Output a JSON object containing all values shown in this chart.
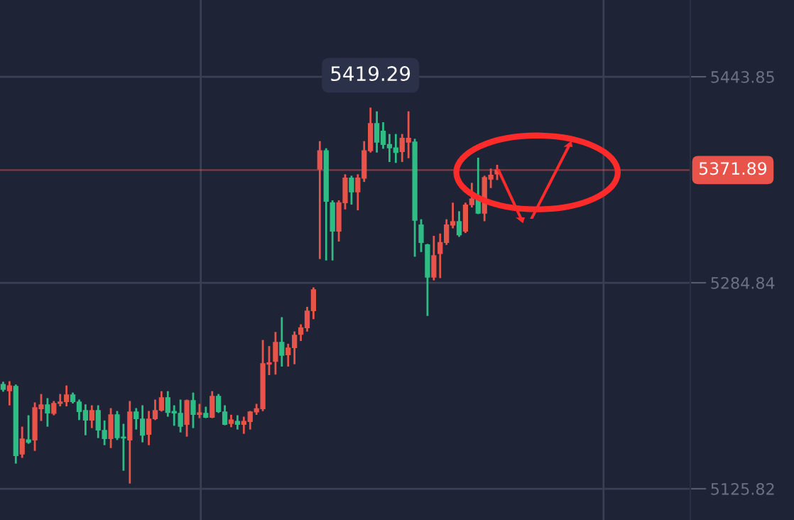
{
  "chart_data": {
    "type": "candlestick",
    "categories": [
      null,
      null,
      null,
      null,
      null,
      null,
      null,
      null,
      null,
      null,
      null,
      null,
      null,
      null,
      null,
      null,
      null,
      null,
      null,
      null,
      null,
      null,
      null,
      null,
      null,
      null,
      null,
      null,
      null,
      null,
      null,
      null,
      null,
      null,
      null,
      null,
      null,
      null,
      null,
      null,
      null,
      null,
      null,
      null,
      null,
      null,
      null,
      null,
      null,
      null,
      null,
      null,
      null,
      null,
      null,
      null,
      null,
      null,
      null,
      null,
      null,
      null,
      null,
      null,
      null,
      null,
      null,
      null,
      null,
      null,
      null,
      null,
      null,
      null,
      null,
      null,
      null,
      null,
      null,
      null,
      null,
      null,
      null,
      null,
      null,
      null,
      null,
      null,
      null,
      null,
      null,
      null,
      null,
      null,
      null,
      null,
      null,
      null,
      null,
      null,
      null,
      null,
      null,
      null,
      null,
      null,
      null,
      null,
      null
    ],
    "ohlc": [
      [
        5206.3,
        5207.7,
        5201.5,
        5202.6
      ],
      [
        5201.5,
        5208.1,
        5190.9,
        5205.2
      ],
      [
        5204.8,
        5205.5,
        5146.0,
        5151.5
      ],
      [
        5152.6,
        5173.0,
        5150.4,
        5164.2
      ],
      [
        5163.5,
        5181.8,
        5161.3,
        5161.7
      ],
      [
        5163.5,
        5191.7,
        5155.8,
        5188.4
      ],
      [
        5187.6,
        5198.2,
        5178.9,
        5190.6
      ],
      [
        5190.6,
        5195.0,
        5174.5,
        5184.4
      ],
      [
        5184.0,
        5192.8,
        5183.3,
        5191.7
      ],
      [
        5191.7,
        5198.2,
        5190.2,
        5192.8
      ],
      [
        5193.1,
        5204.8,
        5190.2,
        5198.2
      ],
      [
        5198.2,
        5199.3,
        5192.4,
        5193.1
      ],
      [
        5192.8,
        5193.9,
        5179.6,
        5185.5
      ],
      [
        5186.2,
        5190.2,
        5167.9,
        5178.9
      ],
      [
        5178.9,
        5189.5,
        5173.4,
        5186.2
      ],
      [
        5186.2,
        5189.5,
        5165.7,
        5171.2
      ],
      [
        5170.8,
        5177.8,
        5160.2,
        5164.6
      ],
      [
        5164.6,
        5187.3,
        5158.0,
        5182.9
      ],
      [
        5182.9,
        5185.1,
        5164.2,
        5165.3
      ],
      [
        5165.7,
        5175.2,
        5140.5,
        5165.0
      ],
      [
        5163.5,
        5192.8,
        5130.6,
        5185.1
      ],
      [
        5185.1,
        5187.3,
        5172.3,
        5180.0
      ],
      [
        5179.6,
        5189.5,
        5162.4,
        5167.2
      ],
      [
        5167.9,
        5185.1,
        5160.2,
        5179.6
      ],
      [
        5180.0,
        5193.9,
        5179.6,
        5186.2
      ],
      [
        5186.5,
        5200.4,
        5186.2,
        5196.1
      ],
      [
        5196.1,
        5200.4,
        5182.2,
        5184.7
      ],
      [
        5185.5,
        5189.5,
        5175.2,
        5184.4
      ],
      [
        5184.0,
        5193.9,
        5170.1,
        5174.1
      ],
      [
        5175.6,
        5193.9,
        5166.8,
        5193.9
      ],
      [
        5193.9,
        5199.3,
        5173.4,
        5183.3
      ],
      [
        5183.3,
        5190.6,
        5181.1,
        5184.4
      ],
      [
        5184.0,
        5188.4,
        5181.1,
        5181.1
      ],
      [
        5181.1,
        5200.4,
        5181.1,
        5197.1
      ],
      [
        5197.1,
        5198.2,
        5185.1,
        5185.5
      ],
      [
        5185.1,
        5189.5,
        5175.6,
        5175.6
      ],
      [
        5176.3,
        5182.2,
        5174.1,
        5178.9
      ],
      [
        5177.8,
        5181.8,
        5172.3,
        5175.6
      ],
      [
        5175.6,
        5180.7,
        5169.0,
        5177.8
      ],
      [
        5177.8,
        5185.1,
        5172.3,
        5185.1
      ],
      [
        5185.1,
        5190.6,
        5183.6,
        5187.6
      ],
      [
        5187.6,
        5239.9,
        5186.5,
        5222.4
      ],
      [
        5222.0,
        5235.2,
        5214.3,
        5223.1
      ],
      [
        5224.2,
        5246.1,
        5214.7,
        5238.8
      ],
      [
        5238.8,
        5257.5,
        5220.9,
        5228.9
      ],
      [
        5229.3,
        5237.0,
        5220.9,
        5234.4
      ],
      [
        5234.8,
        5246.5,
        5222.7,
        5244.3
      ],
      [
        5245.0,
        5252.0,
        5240.6,
        5250.1
      ],
      [
        5250.1,
        5265.5,
        5247.9,
        5262.9
      ],
      [
        5263.3,
        5280.5,
        5257.5,
        5279.4
      ],
      [
        5372.6,
        5393.4,
        5303.9,
        5386.8
      ],
      [
        5386.8,
        5387.9,
        5302.8,
        5347.7
      ],
      [
        5346.6,
        5347.7,
        5302.8,
        5324.7
      ],
      [
        5324.7,
        5347.7,
        5317.4,
        5346.6
      ],
      [
        5346.6,
        5367.8,
        5342.2,
        5365.6
      ],
      [
        5365.6,
        5366.7,
        5345.9,
        5355.0
      ],
      [
        5355.0,
        5367.8,
        5341.5,
        5365.6
      ],
      [
        5365.6,
        5393.4,
        5363.4,
        5386.8
      ],
      [
        5386.8,
        5419.29,
        5386.1,
        5407.7
      ],
      [
        5407.7,
        5416.4,
        5386.1,
        5393.4
      ],
      [
        5401.8,
        5408.0,
        5389.0,
        5391.6
      ],
      [
        5391.6,
        5398.9,
        5378.8,
        5389.0
      ],
      [
        5389.0,
        5398.9,
        5378.1,
        5385.4
      ],
      [
        5386.1,
        5398.9,
        5378.8,
        5396.3
      ],
      [
        5393.4,
        5416.4,
        5381.7,
        5396.3
      ],
      [
        5393.4,
        5395.2,
        5305.7,
        5333.1
      ],
      [
        5329.4,
        5333.1,
        5309.3,
        5315.9
      ],
      [
        5314.1,
        5314.1,
        5260.0,
        5289.2
      ],
      [
        5289.2,
        5320.3,
        5287.4,
        5305.7
      ],
      [
        5307.5,
        5322.1,
        5289.2,
        5315.9
      ],
      [
        5315.9,
        5333.1,
        5314.8,
        5329.4
      ],
      [
        5329.4,
        5345.9,
        5327.6,
        5332.0
      ],
      [
        5332.0,
        5339.3,
        5321.0,
        5321.8
      ],
      [
        5324.7,
        5345.9,
        5324.0,
        5344.8
      ],
      [
        5345.2,
        5361.2,
        5343.7,
        5349.5
      ],
      [
        5349.5,
        5380.6,
        5338.6,
        5338.6
      ],
      [
        5338.6,
        5366.7,
        5333.1,
        5366.0
      ],
      [
        5364.9,
        5372.2,
        5358.7,
        5367.8
      ],
      [
        5368.9,
        5375.1,
        5364.9,
        5371.89
      ],
      null,
      null,
      null,
      null,
      null,
      null,
      null,
      null,
      null,
      null,
      null,
      null,
      null,
      null,
      null,
      null,
      null,
      null,
      null,
      null,
      null,
      null,
      null,
      null,
      null,
      null,
      null,
      null,
      null,
      null
    ],
    "colors": [
      "#2ebd85",
      "#e8534a",
      "#2ebd85",
      "#e8534a",
      "#2ebd85",
      "#e8534a",
      "#e8534a",
      "#2ebd85",
      "#e8534a",
      "#e8534a",
      "#e8534a",
      "#2ebd85",
      "#2ebd85",
      "#2ebd85",
      "#e8534a",
      "#2ebd85",
      "#2ebd85",
      "#e8534a",
      "#2ebd85",
      "#2ebd85",
      "#e8534a",
      "#2ebd85",
      "#2ebd85",
      "#e8534a",
      "#e8534a",
      "#e8534a",
      "#2ebd85",
      "#2ebd85",
      "#2ebd85",
      "#e8534a",
      "#2ebd85",
      "#e8534a",
      "#2ebd85",
      "#e8534a",
      "#2ebd85",
      "#2ebd85",
      "#e8534a",
      "#2ebd85",
      "#e8534a",
      "#e8534a",
      "#e8534a",
      "#e8534a",
      "#e8534a",
      "#e8534a",
      "#2ebd85",
      "#e8534a",
      "#e8534a",
      "#e8534a",
      "#e8534a",
      "#e8534a",
      "#e8534a",
      "#2ebd85",
      "#2ebd85",
      "#e8534a",
      "#e8534a",
      "#2ebd85",
      "#e8534a",
      "#e8534a",
      "#e8534a",
      "#2ebd85",
      "#2ebd85",
      "#2ebd85",
      "#2ebd85",
      "#e8534a",
      "#e8534a",
      "#2ebd85",
      "#2ebd85",
      "#2ebd85",
      "#e8534a",
      "#e8534a",
      "#e8534a",
      "#e8534a",
      "#2ebd85",
      "#e8534a",
      "#e8534a",
      "#2ebd85",
      "#e8534a",
      "#e8534a",
      "#e8534a",
      null,
      null,
      null,
      null,
      null,
      null,
      null,
      null,
      null,
      null,
      null,
      null,
      null,
      null,
      null,
      null,
      null,
      null,
      null,
      null,
      null,
      null,
      null,
      null,
      null,
      null,
      null,
      null,
      null,
      null
    ],
    "ylim": [
      5101.7,
      5503.1
    ],
    "yticks": [
      5443.85,
      5284.84,
      5125.82
    ],
    "grid": "y",
    "ref_lines": [
      {
        "axis": "y",
        "value": 5371.89,
        "label": "5371.89",
        "color": "#e8534a"
      }
    ],
    "annotations": [
      {
        "text": "5419.29",
        "y": 5419.29
      }
    ]
  }
}
